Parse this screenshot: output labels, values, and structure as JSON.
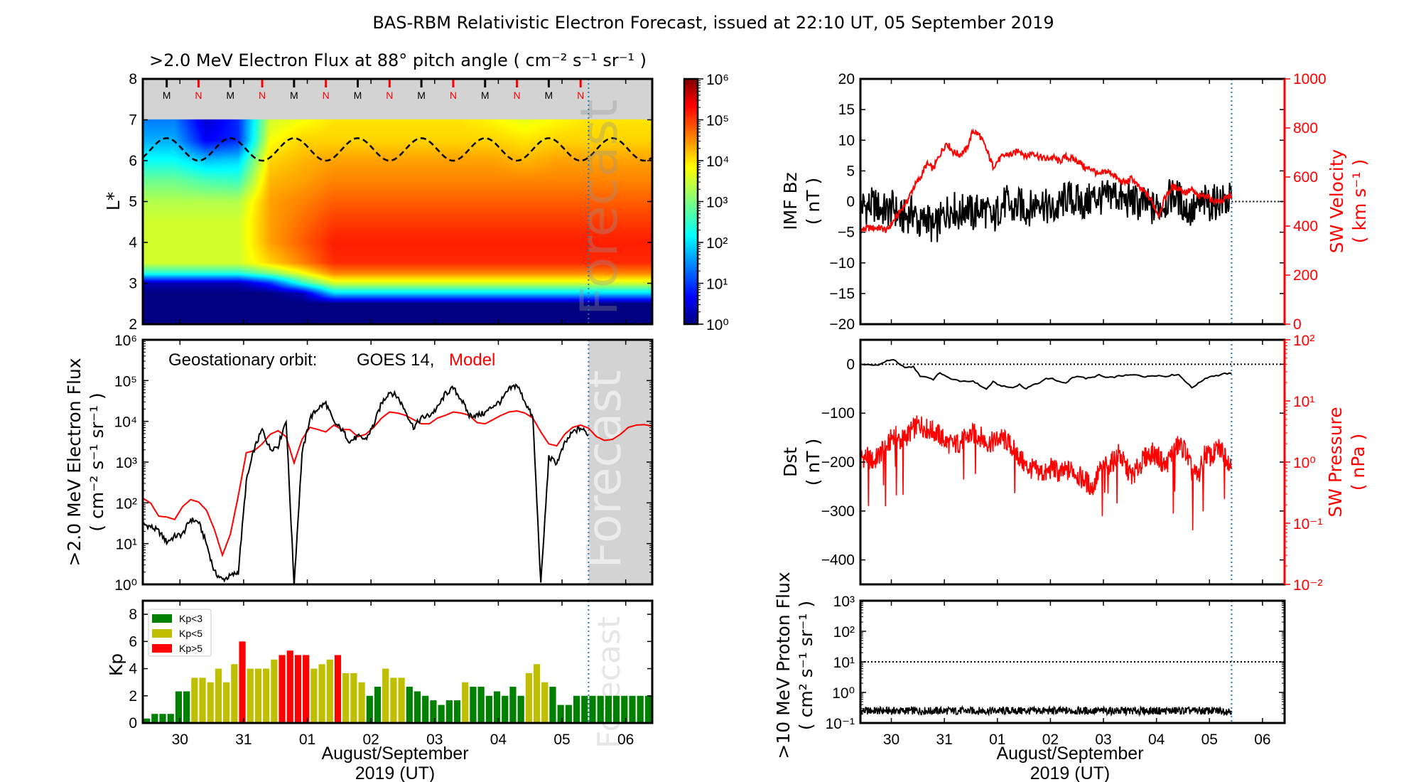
{
  "title": "BAS-RBM Relativistic Electron Forecast, issued at 22:10 UT, 05 September 2019",
  "forecast_label": "Forecast",
  "time_axis": {
    "start": "2019-08-29T10:00",
    "end": "2019-09-06T10:00",
    "forecast_start": "2019-09-05T10:00",
    "sample_interval_hours": 3,
    "day_ticks": [
      {
        "date": "2019-08-30",
        "label": "30"
      },
      {
        "date": "2019-08-31",
        "label": "31"
      },
      {
        "date": "2019-09-01",
        "label": "01"
      },
      {
        "date": "2019-09-02",
        "label": "02"
      },
      {
        "date": "2019-09-03",
        "label": "03"
      },
      {
        "date": "2019-09-04",
        "label": "04"
      },
      {
        "date": "2019-09-05",
        "label": "05"
      },
      {
        "date": "2019-09-06",
        "label": "06"
      }
    ],
    "xlabel_line1": "August/September",
    "xlabel_line2": "2019 (UT)",
    "forecast_line_color": "#1f77b4"
  },
  "chart_data": [
    {
      "type": "heatmap",
      "title": ">2.0 MeV Electron Flux at 88° pitch angle ( cm⁻² s⁻¹ sr⁻¹ )",
      "ylabel": "L*",
      "ylim": [
        2,
        8
      ],
      "yticks": [
        "2",
        "3",
        "4",
        "5",
        "6",
        "7",
        "8"
      ],
      "no_data_band": [
        7,
        8
      ],
      "no_data_color": "#d3d3d3",
      "colorbar": {
        "scale": "log",
        "range": [
          1,
          1000000
        ],
        "colormap": "jet",
        "ticks": [
          "10⁰",
          "10¹",
          "10²",
          "10³",
          "10⁴",
          "10⁵",
          "10⁶"
        ]
      },
      "column_interval_hours": 12,
      "L": [
        2,
        2.5,
        2.75,
        3,
        3.25,
        3.5,
        4,
        4.5,
        5,
        5.5,
        6,
        6.5,
        7
      ],
      "flux": [
        [
          1,
          1,
          1,
          2,
          300,
          3000,
          3000,
          3000,
          2000,
          800,
          200,
          60,
          30
        ],
        [
          1,
          1,
          1,
          2,
          300,
          3000,
          3000,
          3000,
          2000,
          800,
          200,
          60,
          30
        ],
        [
          1,
          1,
          1,
          2,
          300,
          3000,
          3000,
          3000,
          2000,
          500,
          80,
          5,
          3
        ],
        [
          1,
          1,
          1,
          2,
          300,
          3000,
          3000,
          3000,
          2000,
          400,
          100,
          10,
          10
        ],
        [
          1,
          1,
          1,
          10,
          1000,
          10000,
          20000,
          20000,
          20000,
          15000,
          10000,
          5000,
          3000
        ],
        [
          1,
          1,
          2,
          300,
          5000,
          30000,
          50000,
          40000,
          30000,
          20000,
          15000,
          10000,
          5000
        ],
        [
          1,
          1,
          100,
          3000,
          30000,
          100000,
          120000,
          80000,
          50000,
          30000,
          20000,
          10000,
          8000
        ],
        [
          1,
          1,
          100,
          3000,
          30000,
          100000,
          120000,
          80000,
          50000,
          30000,
          20000,
          10000,
          8000
        ],
        [
          1,
          1,
          100,
          3000,
          30000,
          100000,
          120000,
          80000,
          50000,
          30000,
          20000,
          10000,
          8000
        ],
        [
          1,
          1,
          100,
          3000,
          30000,
          100000,
          120000,
          80000,
          50000,
          30000,
          20000,
          10000,
          8000
        ],
        [
          1,
          1,
          100,
          3000,
          30000,
          100000,
          120000,
          80000,
          50000,
          30000,
          20000,
          10000,
          8000
        ],
        [
          1,
          1,
          100,
          3000,
          30000,
          100000,
          120000,
          80000,
          50000,
          30000,
          20000,
          10000,
          6000
        ],
        [
          1,
          1,
          100,
          3000,
          30000,
          100000,
          120000,
          80000,
          50000,
          30000,
          15000,
          8000,
          4000
        ],
        [
          1,
          1,
          100,
          3000,
          30000,
          100000,
          120000,
          80000,
          50000,
          30000,
          20000,
          10000,
          6000
        ],
        [
          1,
          1,
          100,
          3000,
          30000,
          100000,
          120000,
          80000,
          50000,
          30000,
          20000,
          10000,
          8000
        ],
        [
          1,
          1,
          100,
          3000,
          30000,
          100000,
          120000,
          80000,
          50000,
          30000,
          20000,
          10000,
          8000
        ],
        [
          1,
          1,
          100,
          3000,
          30000,
          100000,
          120000,
          80000,
          50000,
          30000,
          20000,
          10000,
          8000
        ]
      ],
      "geo_Lstar": {
        "min": 6.0,
        "max": 6.55,
        "period_hours": 24,
        "first_peak": "2019-08-29T19:00",
        "style": "dashed",
        "color": "#000000"
      },
      "mn_markers": {
        "labels": [
          "M",
          "N",
          "M",
          "N",
          "M",
          "N",
          "M",
          "N",
          "M",
          "N",
          "M",
          "N",
          "M",
          "N"
        ],
        "first": "2019-08-29T19:00",
        "interval_hours": 12,
        "colors": {
          "M": "#000000",
          "N": "#ff0000"
        }
      }
    },
    {
      "type": "line",
      "annotation": {
        "prefix": "Geostationary orbit:",
        "obs": "GOES 14,",
        "model": "Model"
      },
      "ylabel": ">2.0 MeV Electron Flux",
      "yunit": "( cm⁻² s⁻¹ sr⁻¹ )",
      "yscale": "log",
      "ylim": [
        1,
        1000000
      ],
      "yticks": [
        "10⁰",
        "10¹",
        "10²",
        "10³",
        "10⁴",
        "10⁵",
        "10⁶"
      ],
      "forecast_shade": "#d3d3d3",
      "series": [
        {
          "name": "GOES 14",
          "color": "#000000",
          "values": [
            30,
            26,
            20,
            11,
            15,
            17,
            39,
            34,
            10,
            2,
            1.3,
            1.6,
            2,
            330,
            2100,
            6300,
            2100,
            2500,
            11000,
            1,
            1600,
            12000,
            21000,
            28000,
            9300,
            6300,
            3200,
            4200,
            3600,
            8100,
            28000,
            54000,
            40000,
            18000,
            7100,
            12000,
            14000,
            21000,
            47000,
            65000,
            35000,
            14000,
            14000,
            16000,
            24000,
            31000,
            60000,
            79000,
            31000,
            12000,
            1,
            1300,
            950,
            2800,
            5400,
            6800,
            4800
          ]
        },
        {
          "name": "Model",
          "color": "#ff0000",
          "values": [
            130,
            98,
            47,
            45,
            39,
            81,
            120,
            105,
            66,
            22,
            5.2,
            17,
            150,
            1700,
            1900,
            2800,
            4800,
            5900,
            4200,
            950,
            3600,
            7100,
            6300,
            5500,
            8100,
            6300,
            6300,
            4200,
            4800,
            7100,
            12000,
            17000,
            16000,
            14000,
            11000,
            8700,
            8700,
            12000,
            14000,
            17000,
            16000,
            14000,
            9300,
            8700,
            11000,
            14000,
            17000,
            18000,
            16000,
            12000,
            5500,
            2800,
            2500,
            4800,
            7100,
            8100,
            6800,
            4200,
            3400,
            3600,
            4800,
            7100,
            8100,
            8300,
            7600
          ]
        }
      ]
    },
    {
      "type": "bar",
      "ylabel": "Kp",
      "ylim": [
        0,
        9
      ],
      "yticks": [
        "0",
        "2",
        "4",
        "6",
        "8"
      ],
      "legend_position": "top-left",
      "legend": [
        {
          "label": "Kp<3",
          "color": "#008000"
        },
        {
          "label": "Kp<5",
          "color": "#bfbf00"
        },
        {
          "label": "Kp>5",
          "color": "#ff0000"
        }
      ],
      "values": [
        0.33,
        0.67,
        0.67,
        0.67,
        2.33,
        2.33,
        3.33,
        3.33,
        3,
        4,
        3,
        4.33,
        6,
        4,
        4,
        4,
        4.67,
        5,
        5.33,
        5,
        5,
        4,
        4.33,
        4.67,
        5,
        3.67,
        3.67,
        3,
        2,
        2.67,
        4,
        3.33,
        3.33,
        2.67,
        2.33,
        2,
        1.67,
        1.33,
        1.67,
        1.67,
        3,
        2.67,
        2.67,
        2,
        2.33,
        2,
        2.67,
        2,
        3.67,
        4.33,
        3,
        2.67,
        1.33,
        1.33,
        2,
        2,
        2,
        2,
        2,
        2,
        2,
        2,
        2,
        2
      ]
    },
    {
      "type": "line",
      "ylabel": "IMF Bz",
      "yunit": "( nT )",
      "ylim": [
        -20,
        20
      ],
      "yticks": [
        "−20",
        "−15",
        "−10",
        "−5",
        "0",
        "5",
        "10",
        "15",
        "20"
      ],
      "y2label": "SW Velocity",
      "y2unit": "( km s⁻¹ )",
      "y2lim": [
        0,
        1000
      ],
      "y2ticks": [
        "0",
        "200",
        "400",
        "600",
        "800",
        "1000"
      ],
      "y2color": "#ff0000",
      "series": [
        {
          "name": "IMF Bz",
          "axis": "left",
          "color": "#000000",
          "values": [
            -0.5,
            -0.9,
            -0.5,
            -1.2,
            -1.6,
            -0.9,
            -2.8,
            -2.4,
            -1.6,
            -4,
            -2.4,
            -4.7,
            -3.2,
            -1.6,
            -0.9,
            -2.4,
            -0.5,
            -2.4,
            -0.9,
            -1.6,
            -3.2,
            -0.9,
            -0.1,
            -1.6,
            -0.5,
            -1.2,
            -0.9,
            0.7,
            -0.9,
            -1.6,
            -0.9,
            0.7,
            0.3,
            -0.1,
            -0.5,
            0.7,
            0.7,
            0.3,
            1.5,
            0.7,
            -0.1,
            0.3,
            -0.5,
            -0.5,
            -1.2,
            -0.9,
            -0.1,
            1.1,
            0.7,
            -1.2,
            -1.6,
            -0.9,
            -0.1,
            -0.5,
            0.3,
            -0.1,
            0.3
          ]
        },
        {
          "name": "SW Velocity",
          "axis": "right",
          "color": "#ff0000",
          "values": [
            382,
            392,
            392,
            392,
            382,
            421,
            460,
            499,
            557,
            595,
            653,
            634,
            692,
            741,
            702,
            692,
            712,
            789,
            770,
            712,
            644,
            673,
            692,
            692,
            712,
            682,
            702,
            682,
            673,
            682,
            663,
            682,
            673,
            663,
            634,
            634,
            605,
            624,
            615,
            586,
            576,
            595,
            557,
            537,
            499,
            445,
            518,
            557,
            557,
            537,
            547,
            518,
            528,
            508,
            499,
            508,
            528
          ]
        }
      ],
      "reference_line": {
        "value": 0,
        "from": "forecast_start",
        "style": "dotted"
      }
    },
    {
      "type": "line",
      "ylabel": "Dst",
      "yunit": "( nT )",
      "ylim": [
        -450,
        50
      ],
      "ytick_values": [
        0,
        -100,
        -200,
        -300,
        -400
      ],
      "yticks": [
        "0",
        "−100",
        "−200",
        "−300",
        "−400"
      ],
      "y2label": "SW Pressure",
      "y2unit": "( nPa )",
      "y2scale": "log",
      "y2lim": [
        0.01,
        100
      ],
      "y2ticks": [
        "10⁻²",
        "10⁻¹",
        "10⁰",
        "10¹",
        "10²"
      ],
      "y2color": "#ff0000",
      "series": [
        {
          "name": "Dst",
          "axis": "left",
          "color": "#000000",
          "values": [
            0,
            -1,
            -2,
            0,
            7,
            10,
            -2,
            -7,
            -5,
            -24,
            -26,
            -31,
            -17,
            -26,
            -31,
            -34,
            -36,
            -34,
            -43,
            -51,
            -36,
            -43,
            -46,
            -48,
            -41,
            -51,
            -41,
            -39,
            -29,
            -29,
            -36,
            -39,
            -27,
            -24,
            -29,
            -27,
            -22,
            -27,
            -27,
            -24,
            -23,
            -22,
            -22,
            -26,
            -23,
            -23,
            -25,
            -22,
            -21,
            -34,
            -48,
            -39,
            -29,
            -24,
            -23,
            -19,
            -19
          ]
        },
        {
          "name": "SW Pressure",
          "axis": "right",
          "color": "#ff0000",
          "values": [
            1.2,
            1.2,
            1.0,
            1.4,
            1.7,
            2.9,
            2.2,
            2.7,
            3.5,
            4.2,
            3.5,
            3.2,
            2.7,
            2.1,
            1.9,
            2.1,
            2.5,
            2.9,
            2.7,
            2.1,
            2.1,
            2.5,
            2.2,
            1.7,
            1.2,
            0.84,
            0.76,
            0.7,
            0.64,
            0.84,
            0.64,
            0.7,
            0.76,
            0.58,
            0.49,
            0.37,
            0.7,
            0.84,
            1.0,
            1.4,
            0.84,
            0.58,
            0.84,
            1.2,
            1.4,
            1.2,
            0.84,
            1.4,
            1.9,
            1.6,
            0.7,
            0.58,
            1.4,
            1.2,
            1.7,
            1.4,
            0.84
          ]
        }
      ],
      "reference_line": {
        "value": 0,
        "style": "dotted"
      }
    },
    {
      "type": "line",
      "ylabel": ">10 MeV Proton Flux",
      "yunit": "( cm² s⁻¹ sr⁻¹ )",
      "yscale": "log",
      "ylim": [
        0.1,
        1000
      ],
      "yticks": [
        "10⁻¹",
        "10⁰",
        "10¹",
        "10²",
        "10³"
      ],
      "threshold": 10,
      "series": [
        {
          "name": ">10 MeV Proton Flux",
          "color": "#000000",
          "values": [
            0.25,
            0.25,
            0.25,
            0.25,
            0.25,
            0.25,
            0.25,
            0.25,
            0.25,
            0.25,
            0.25,
            0.25,
            0.25,
            0.25,
            0.25,
            0.25,
            0.25,
            0.25,
            0.25,
            0.25,
            0.25,
            0.25,
            0.25,
            0.25,
            0.25,
            0.25,
            0.25,
            0.25,
            0.25,
            0.25,
            0.25,
            0.25,
            0.25,
            0.25,
            0.25,
            0.25,
            0.25,
            0.25,
            0.25,
            0.25,
            0.25,
            0.25,
            0.25,
            0.25,
            0.25,
            0.25,
            0.25,
            0.25,
            0.25,
            0.25,
            0.25,
            0.25,
            0.25,
            0.25,
            0.25,
            0.25,
            0.25
          ]
        }
      ]
    }
  ]
}
